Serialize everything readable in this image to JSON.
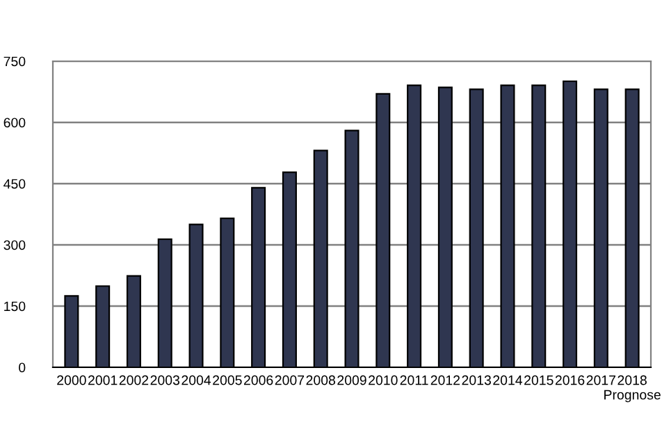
{
  "chart_data": {
    "type": "bar",
    "categories": [
      "2000",
      "2001",
      "2002",
      "2003",
      "2004",
      "2005",
      "2006",
      "2007",
      "2008",
      "2009",
      "2010",
      "2011",
      "2012",
      "2013",
      "2014",
      "2015",
      "2016",
      "2017",
      "2018\nPrognose"
    ],
    "values": [
      175,
      199,
      224,
      314,
      350,
      365,
      440,
      478,
      531,
      580,
      670,
      691,
      686,
      681,
      691,
      691,
      701,
      681,
      681
    ],
    "color": "#2f3650",
    "ylim": [
      0,
      750
    ],
    "yticks": [
      0,
      150,
      300,
      450,
      600,
      750
    ],
    "grid": "y",
    "legend": false
  }
}
